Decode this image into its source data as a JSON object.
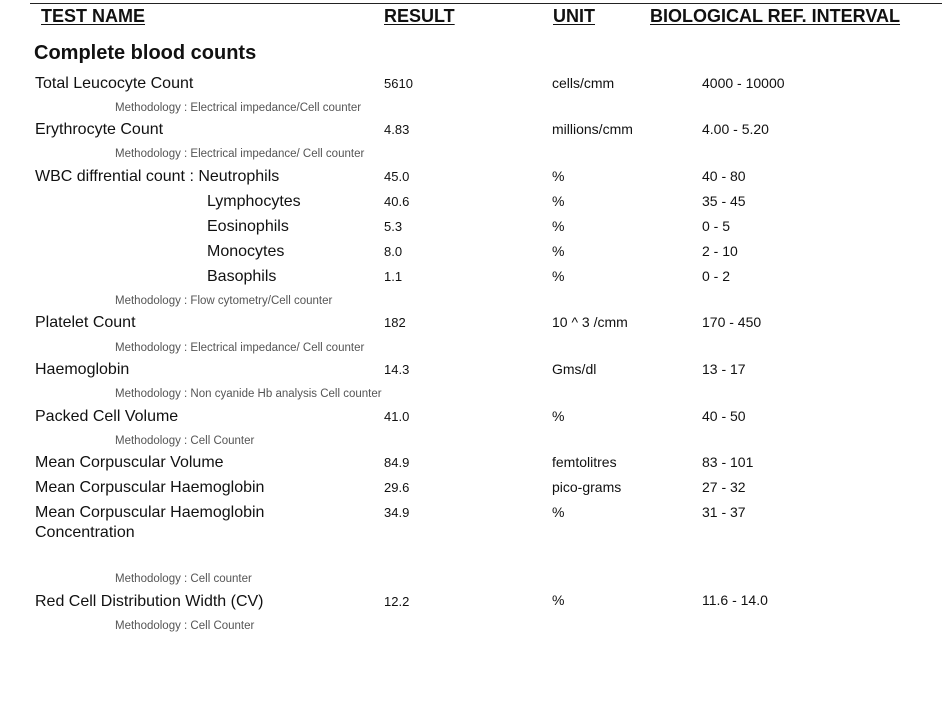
{
  "header": {
    "test_name": "TEST NAME",
    "result": "RESULT",
    "unit": "UNIT",
    "ref_interval": "BIOLOGICAL REF. INTERVAL"
  },
  "section_title": "Complete blood counts",
  "tests": [
    {
      "name": "Total Leucocyte Count",
      "result": "5610",
      "unit": "cells/cmm",
      "ref": "4000 - 10000",
      "methodology": "Methodology : Electrical impedance/Cell counter"
    },
    {
      "name": "Erythrocyte Count",
      "result": "4.83",
      "unit": "millions/cmm",
      "ref": "4.00 - 5.20",
      "methodology": "Methodology : Electrical impedance/ Cell counter"
    },
    {
      "name": "WBC diffrential count : Neutrophils",
      "result": "45.0",
      "unit": "%",
      "ref": "40 - 80"
    },
    {
      "name": "Lymphocytes",
      "result": "40.6",
      "unit": "%",
      "ref": "35 - 45"
    },
    {
      "name": "Eosinophils",
      "result": "5.3",
      "unit": "%",
      "ref": "0 - 5"
    },
    {
      "name": "Monocytes",
      "result": "8.0",
      "unit": "%",
      "ref": "2 - 10"
    },
    {
      "name": "Basophils",
      "result": "1.1",
      "unit": "%",
      "ref": "0 - 2",
      "methodology": "Methodology : Flow cytometry/Cell counter"
    },
    {
      "name": "Platelet Count",
      "result": "182",
      "unit": "10 ^ 3 /cmm",
      "ref": "170 - 450",
      "methodology": "Methodology : Electrical impedance/ Cell counter"
    },
    {
      "name": "Haemoglobin",
      "result": "14.3",
      "unit": "Gms/dl",
      "ref": "13 - 17",
      "methodology": "Methodology : Non cyanide Hb analysis Cell counter"
    },
    {
      "name": "Packed Cell Volume",
      "result": "41.0",
      "unit": "%",
      "ref": "40 - 50",
      "methodology": "Methodology : Cell Counter"
    },
    {
      "name": "Mean Corpuscular Volume",
      "result": "84.9",
      "unit": "femtolitres",
      "ref": "83 - 101"
    },
    {
      "name": "Mean Corpuscular Haemoglobin",
      "result": "29.6",
      "unit": "pico-grams",
      "ref": "27 - 32"
    },
    {
      "name": "Mean Corpuscular Haemoglobin",
      "name_line2": "Concentration",
      "result": "34.9",
      "unit": "%",
      "ref": "31 - 37",
      "methodology": "Methodology : Cell counter"
    },
    {
      "name": "Red Cell Distribution Width (CV)",
      "result": "12.2",
      "unit": "%",
      "ref": "11.6 - 14.0",
      "methodology": "Methodology :  Cell Counter"
    }
  ]
}
